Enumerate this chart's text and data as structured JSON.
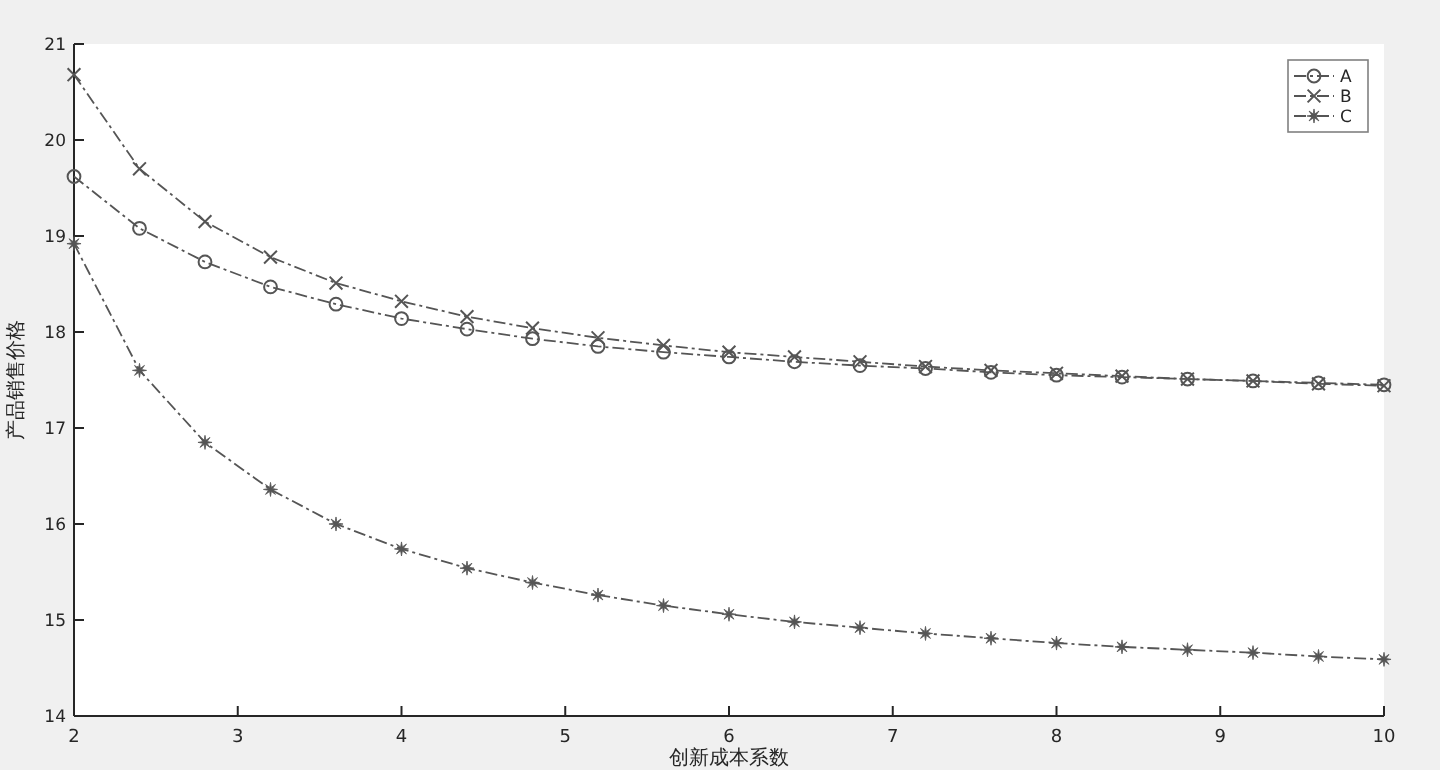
{
  "chart_data": {
    "type": "line",
    "xlabel": "创新成本系数",
    "ylabel": "产品销售价格",
    "x": [
      2,
      2.4,
      2.8,
      3.2,
      3.6,
      4,
      4.4,
      4.8,
      5.2,
      5.6,
      6,
      6.4,
      6.8,
      7.2,
      7.6,
      8,
      8.4,
      8.8,
      9.2,
      9.6,
      10
    ],
    "xlim": [
      2,
      10
    ],
    "ylim": [
      14,
      21
    ],
    "xticks": [
      2,
      3,
      4,
      5,
      6,
      7,
      8,
      9,
      10
    ],
    "yticks": [
      14,
      15,
      16,
      17,
      18,
      19,
      20,
      21
    ],
    "legend": "top right",
    "line_style": "dashed",
    "grid": false,
    "series": [
      {
        "name": "A",
        "color": "#555555",
        "marker": "circle",
        "values": [
          19.62,
          19.08,
          18.73,
          18.47,
          18.29,
          18.14,
          18.03,
          17.93,
          17.85,
          17.79,
          17.74,
          17.69,
          17.65,
          17.62,
          17.58,
          17.55,
          17.53,
          17.51,
          17.49,
          17.47,
          17.45
        ]
      },
      {
        "name": "B",
        "color": "#555555",
        "marker": "cross",
        "values": [
          20.68,
          19.7,
          19.15,
          18.78,
          18.51,
          18.32,
          18.16,
          18.04,
          17.94,
          17.86,
          17.79,
          17.74,
          17.69,
          17.64,
          17.6,
          17.57,
          17.54,
          17.51,
          17.49,
          17.46,
          17.44
        ]
      },
      {
        "name": "C",
        "color": "#555555",
        "marker": "star",
        "values": [
          18.92,
          17.6,
          16.85,
          16.36,
          16.0,
          15.74,
          15.54,
          15.39,
          15.26,
          15.15,
          15.06,
          14.98,
          14.92,
          14.86,
          14.81,
          14.76,
          14.72,
          14.69,
          14.66,
          14.62,
          14.59
        ]
      }
    ]
  }
}
